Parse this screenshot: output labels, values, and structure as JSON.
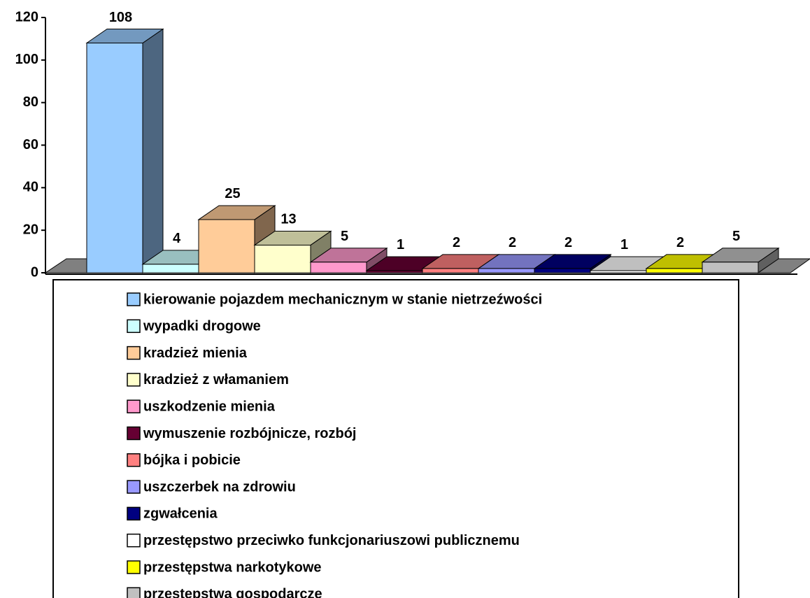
{
  "chart_data": {
    "type": "bar",
    "three_d": true,
    "ylim": [
      0,
      120
    ],
    "yticks": [
      0,
      20,
      40,
      60,
      80,
      100,
      120
    ],
    "series": [
      {
        "name": "kierowanie pojazdem mechanicznym w stanie nietrzeźwości",
        "color": "#99ccff",
        "values": [
          108
        ]
      },
      {
        "name": "wypadki drogowe",
        "color": "#ccffff",
        "values": [
          4
        ]
      },
      {
        "name": "kradzież mienia",
        "color": "#ffcc99",
        "values": [
          25
        ]
      },
      {
        "name": "kradzież z włamaniem",
        "color": "#ffffcc",
        "values": [
          13
        ]
      },
      {
        "name": "uszkodzenie mienia",
        "color": "#ff99cc",
        "values": [
          5
        ]
      },
      {
        "name": "wymuszenie rozbójnicze, rozbój",
        "color": "#660033",
        "values": [
          1
        ]
      },
      {
        "name": "bójka i pobicie",
        "color": "#ff8080",
        "values": [
          2
        ]
      },
      {
        "name": "uszczerbek na zdrowiu",
        "color": "#9999ff",
        "values": [
          2
        ]
      },
      {
        "name": "zgwałcenia",
        "color": "#000080",
        "values": [
          2
        ]
      },
      {
        "name": "przestępstwo przeciwko funkcjonariuszowi publicznemu",
        "color": "#ffffff",
        "values": [
          1
        ]
      },
      {
        "name": "przestępstwa narkotykowe",
        "color": "#ffff00",
        "values": [
          2
        ]
      },
      {
        "name": "przestępstwa gospodarcze",
        "color": "#c0c0c0",
        "values": [
          5
        ]
      }
    ]
  }
}
